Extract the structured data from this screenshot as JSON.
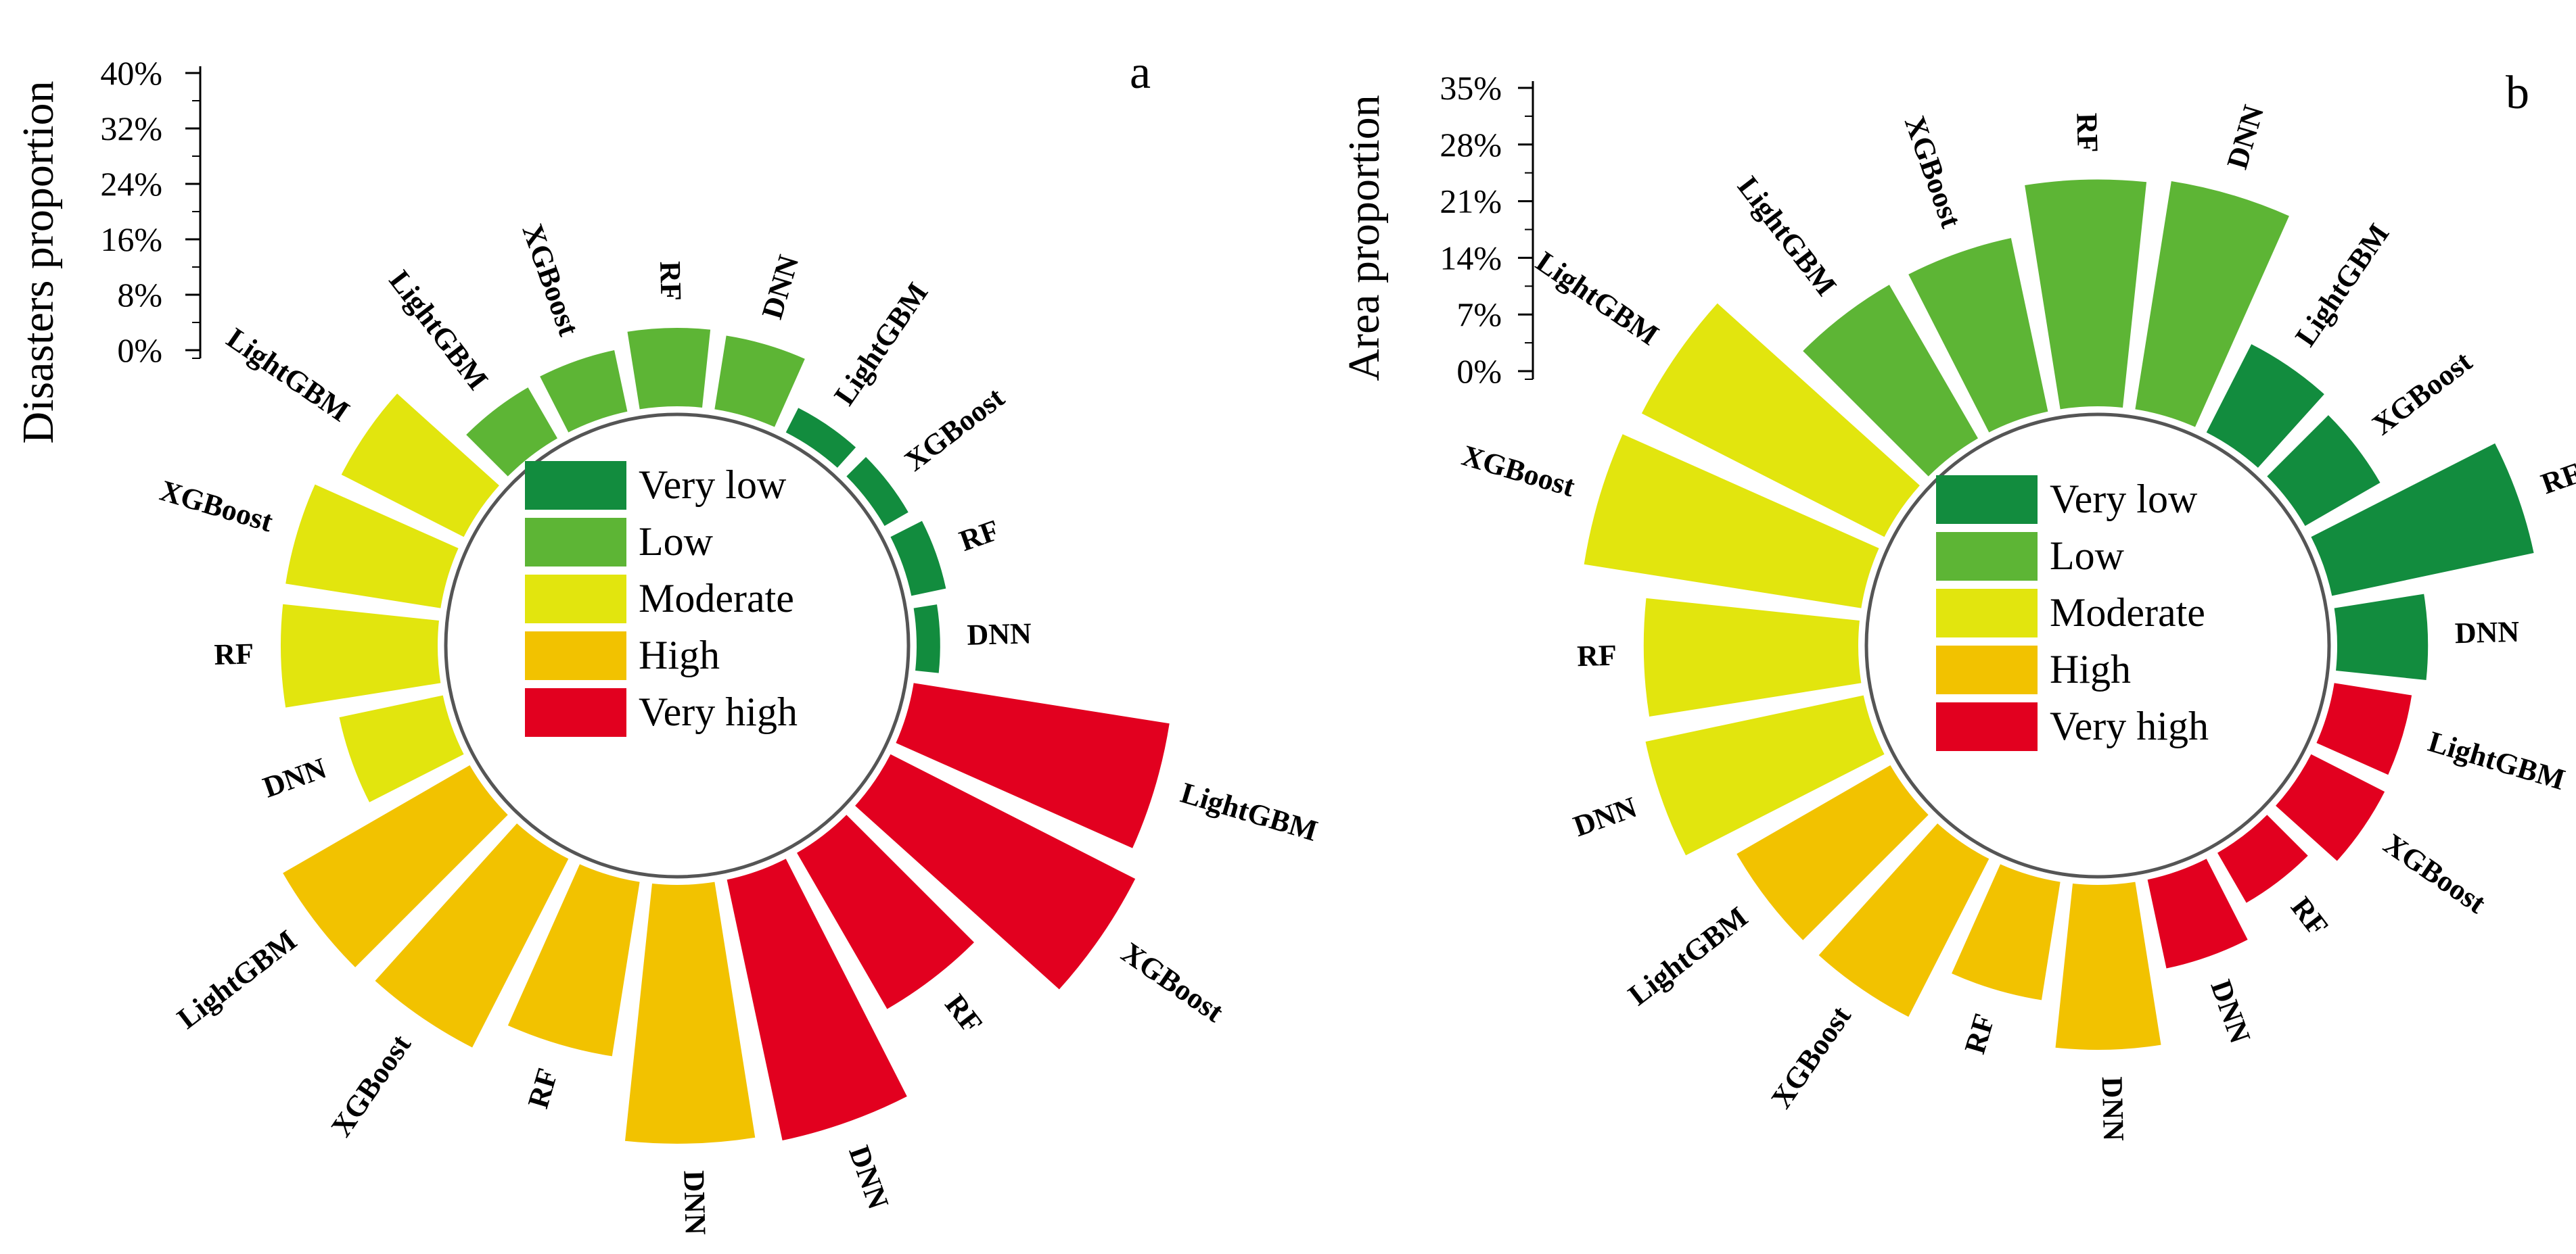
{
  "chart_data": [
    {
      "type": "radial-bar",
      "panel_label": "a",
      "ylabel": "Disasters proportion",
      "ylim": [
        0,
        40
      ],
      "y_ticks": [
        "0%",
        "8%",
        "16%",
        "24%",
        "32%",
        "40%"
      ],
      "legend": [
        "Very low",
        "Low",
        "Moderate",
        "High",
        "Very high"
      ],
      "colors": {
        "Very low": "#128C3E",
        "Low": "#5DB535",
        "Moderate": "#E2E50E",
        "High": "#F2C200",
        "Very high": "#E2001F"
      },
      "categories": [
        "LightGBM",
        "XGBoost",
        "RF",
        "DNN"
      ],
      "series": [
        {
          "name": "Very low",
          "values": [
            3.5,
            3.5,
            4.5,
            3.0
          ]
        },
        {
          "name": "Very high",
          "values": [
            33.0,
            35.0,
            23.0,
            34.0
          ]
        },
        {
          "name": "High",
          "values": [
            27.5,
            27.0,
            22.5,
            33.0
          ]
        },
        {
          "name": "Moderate",
          "values": [
            17.5,
            20.0,
            20.0,
            13.5
          ]
        },
        {
          "name": "Low",
          "values": [
            7.5,
            8.0,
            10.0,
            9.5
          ]
        }
      ]
    },
    {
      "type": "radial-bar",
      "panel_label": "b",
      "ylabel": "Area proportion",
      "ylim": [
        0,
        35
      ],
      "y_ticks": [
        "0%",
        "7%",
        "14%",
        "21%",
        "28%",
        "35%"
      ],
      "legend": [
        "Very low",
        "Low",
        "Moderate",
        "High",
        "Very high"
      ],
      "colors": {
        "Very low": "#128C3E",
        "Low": "#5DB535",
        "Moderate": "#E2E50E",
        "High": "#F2C200",
        "Very high": "#E2001F"
      },
      "categories": [
        "LightGBM",
        "XGBoost",
        "RF",
        "DNN"
      ],
      "series": [
        {
          "name": "Very low",
          "values": [
            12.0,
            10.5,
            25.0,
            11.0
          ]
        },
        {
          "name": "Very high",
          "values": [
            9.5,
            10.0,
            7.0,
            11.0
          ]
        },
        {
          "name": "High",
          "values": [
            21.5,
            21.5,
            14.5,
            20.0
          ]
        },
        {
          "name": "Moderate",
          "values": [
            33.0,
            34.0,
            26.0,
            27.0
          ]
        },
        {
          "name": "Low",
          "values": [
            21.5,
            21.5,
            27.5,
            28.0
          ]
        }
      ]
    }
  ]
}
